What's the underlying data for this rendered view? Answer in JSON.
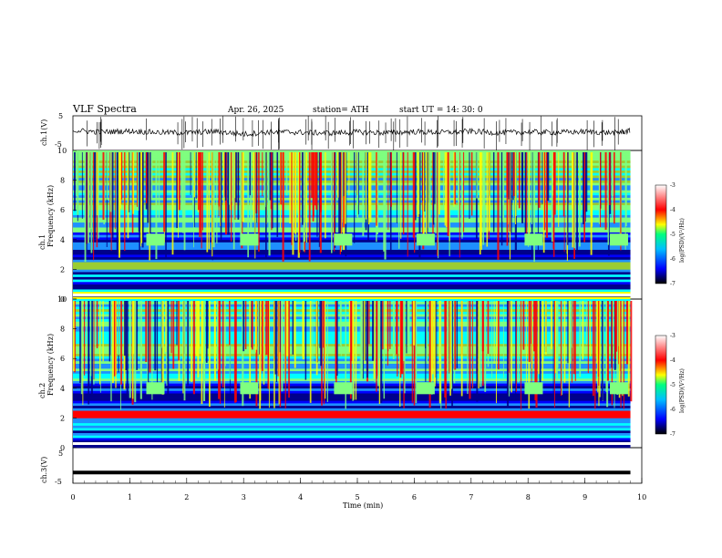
{
  "header": {
    "title": "VLF  Spectra",
    "date": "Apr. 26, 2025",
    "station": "station= ATH",
    "start_ut": "start  UT  =   14: 30: 0"
  },
  "colors": {
    "spectrogram_scale": [
      "#00008b",
      "#0000ff",
      "#1e90ff",
      "#00ffff",
      "#7fff7f",
      "#9acd32",
      "#ffff00",
      "#ffa500",
      "#ff0000",
      "#8b0000"
    ],
    "trace": "#000000"
  },
  "chart_data": [
    {
      "type": "line",
      "panel": "ch1-waveform",
      "ylabel": "ch.1(V)",
      "ylim": [
        -5,
        5
      ],
      "yticks": [
        "5",
        "-5"
      ],
      "x": [
        0,
        0.5,
        1,
        1.5,
        2,
        2.5,
        3,
        3.5,
        4,
        4.5,
        5,
        5.5,
        6,
        6.5,
        7,
        7.5,
        8,
        8.5,
        9,
        9.5,
        9.8
      ],
      "y": [
        0.8,
        0.3,
        0.6,
        0.2,
        0.1,
        0.5,
        -0.3,
        0.4,
        0.2,
        0.0,
        0.3,
        0.1,
        0.4,
        0.2,
        0.5,
        0.1,
        0.3,
        0.2,
        0.4,
        0.1,
        0.6
      ]
    },
    {
      "type": "heatmap",
      "panel": "ch1-spectrogram",
      "ylabel": "ch.1\nFrequency (kHz)",
      "ylim": [
        0,
        10
      ],
      "yticks": [
        "0",
        "2",
        "4",
        "6",
        "8",
        "10"
      ],
      "colorbar": {
        "label": "log(PSD)(V²/Hz)",
        "range": [
          -7,
          -3
        ],
        "ticks": [
          "-3",
          "-4",
          "-5",
          "-6",
          "-7"
        ]
      }
    },
    {
      "type": "heatmap",
      "panel": "ch2-spectrogram",
      "ylabel": "ch.2\nFrequency (kHz)",
      "ylim": [
        0,
        10
      ],
      "yticks": [
        "0",
        "2",
        "4",
        "6",
        "8",
        "10"
      ],
      "colorbar": {
        "label": "log(PSD)(V²/Hz)",
        "range": [
          -7,
          -3
        ],
        "ticks": [
          "-3",
          "-4",
          "-5",
          "-6",
          "-7"
        ]
      }
    },
    {
      "type": "line",
      "panel": "ch3-waveform",
      "ylabel": "ch.3(V)",
      "ylim": [
        -5,
        5
      ],
      "yticks": [
        "5",
        "-5"
      ],
      "x": [
        0,
        9.8
      ],
      "y": [
        -2,
        -2
      ]
    }
  ],
  "xaxis": {
    "label": "Time  (min)",
    "xlim": [
      0,
      10
    ],
    "ticks": [
      "0",
      "1",
      "2",
      "3",
      "4",
      "5",
      "6",
      "7",
      "8",
      "9",
      "10"
    ]
  }
}
